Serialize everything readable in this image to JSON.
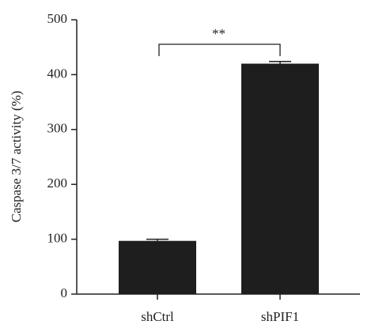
{
  "chart_data": {
    "type": "bar",
    "y_label": "Caspase 3/7 activity (%)",
    "categories": [
      "shCtrl",
      "shPIF1"
    ],
    "values": [
      97,
      420
    ],
    "errors": [
      3,
      4
    ],
    "color": "#1e1e1e",
    "ylim": [
      0,
      500
    ],
    "yticks": [
      0,
      100,
      200,
      300,
      400,
      500
    ],
    "annotation": "**"
  }
}
